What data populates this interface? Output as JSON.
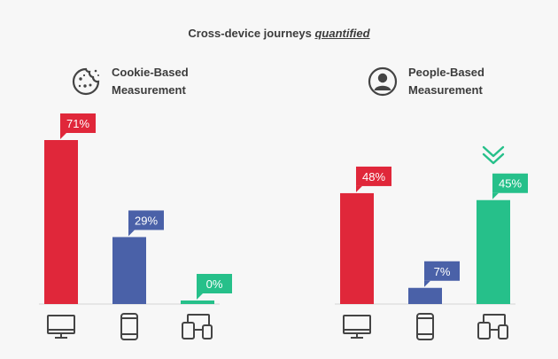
{
  "title": {
    "prefix": "Cross-device journeys ",
    "emphasis": "quantified"
  },
  "colors": {
    "desktop": "#e0273a",
    "mobile": "#4a61a8",
    "multi_device": "#26c08a",
    "baseline": "#d4d4d4",
    "icon": "#444444"
  },
  "groups": [
    {
      "label_line1": "Cookie-Based",
      "label_line2": "Measurement",
      "icon": "cookie-icon"
    },
    {
      "label_line1": "People-Based",
      "label_line2": "Measurement",
      "icon": "person-icon"
    }
  ],
  "chart_data": {
    "type": "bar",
    "title": "Cross-device journeys quantified",
    "xlabel": "",
    "ylabel": "",
    "ylim": [
      0,
      71
    ],
    "grid": false,
    "unit": "%",
    "categories": [
      "desktop-icon",
      "mobile-icon",
      "multi-device-icon"
    ],
    "groups": [
      {
        "name": "Cookie-Based Measurement",
        "values": [
          71,
          29,
          0
        ],
        "labels": [
          "71%",
          "29%",
          "0%"
        ]
      },
      {
        "name": "People-Based Measurement",
        "values": [
          48,
          7,
          45
        ],
        "labels": [
          "48%",
          "7%",
          "45%"
        ],
        "highlight_icon": "double-chevron-down-icon",
        "highlight_index": 2
      }
    ]
  }
}
